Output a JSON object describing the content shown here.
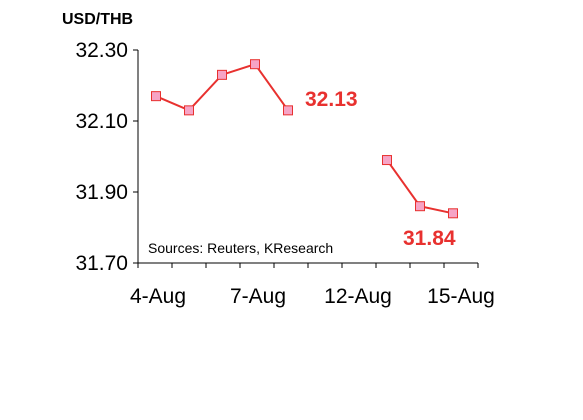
{
  "chart_data": {
    "type": "line",
    "title": "USD/THB",
    "source": "Sources: Reuters, KResearch",
    "ylim": [
      31.7,
      32.3
    ],
    "yticks": [
      "32.30",
      "32.10",
      "31.90",
      "31.70"
    ],
    "x_ticks": [
      "4-Aug",
      "7-Aug",
      "12-Aug",
      "15-Aug"
    ],
    "series": [
      {
        "values": [
          32.17,
          32.13,
          32.23,
          32.26,
          32.13,
          null,
          null,
          31.99,
          31.86,
          31.84
        ]
      }
    ],
    "annotations": [
      "32.13",
      "31.84"
    ],
    "grid": false,
    "colors": {
      "line": "#e8312f",
      "marker_fill": "#f6a4c6",
      "annotation": "#e8312f",
      "axis": "#000000"
    }
  }
}
